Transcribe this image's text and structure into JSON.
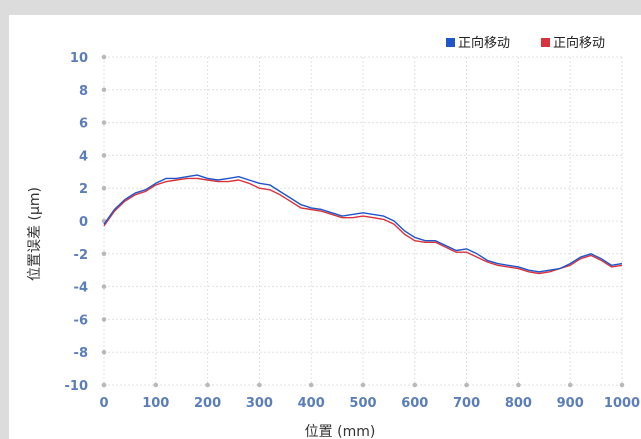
{
  "chart_data": {
    "type": "line",
    "title": "",
    "xlabel": "位置 (mm)",
    "ylabel": "位置误差 (μm)",
    "xlim": [
      0,
      1000
    ],
    "ylim": [
      -10,
      10
    ],
    "x_ticks": [
      "0",
      "100",
      "200",
      "300",
      "400",
      "500",
      "600",
      "700",
      "800",
      "900",
      "1000"
    ],
    "y_ticks": [
      "10",
      "8",
      "6",
      "4",
      "2",
      "0",
      "-2",
      "-4",
      "-6",
      "-8",
      "-10"
    ],
    "grid": true,
    "legend_position": "top-right",
    "series": [
      {
        "name": "正向移动",
        "color": "#2255c8",
        "x": [
          0,
          20,
          40,
          60,
          80,
          100,
          120,
          140,
          160,
          180,
          200,
          220,
          240,
          260,
          280,
          300,
          320,
          340,
          360,
          380,
          400,
          420,
          440,
          460,
          480,
          500,
          520,
          540,
          560,
          580,
          600,
          620,
          640,
          660,
          680,
          700,
          720,
          740,
          760,
          780,
          800,
          820,
          840,
          860,
          880,
          900,
          920,
          940,
          960,
          980,
          1000
        ],
        "y": [
          -0.2,
          0.7,
          1.3,
          1.7,
          1.9,
          2.3,
          2.6,
          2.6,
          2.7,
          2.8,
          2.6,
          2.5,
          2.6,
          2.7,
          2.5,
          2.3,
          2.2,
          1.8,
          1.4,
          1.0,
          0.8,
          0.7,
          0.5,
          0.3,
          0.4,
          0.5,
          0.4,
          0.3,
          0.0,
          -0.6,
          -1.0,
          -1.2,
          -1.2,
          -1.5,
          -1.8,
          -1.7,
          -2.0,
          -2.4,
          -2.6,
          -2.7,
          -2.8,
          -3.0,
          -3.1,
          -3.0,
          -2.9,
          -2.6,
          -2.2,
          -2.0,
          -2.3,
          -2.7,
          -2.6
        ]
      },
      {
        "name": "正向移动",
        "color": "#d8323c",
        "x": [
          0,
          20,
          40,
          60,
          80,
          100,
          120,
          140,
          160,
          180,
          200,
          220,
          240,
          260,
          280,
          300,
          320,
          340,
          360,
          380,
          400,
          420,
          440,
          460,
          480,
          500,
          520,
          540,
          560,
          580,
          600,
          620,
          640,
          660,
          680,
          700,
          720,
          740,
          760,
          780,
          800,
          820,
          840,
          860,
          880,
          900,
          920,
          940,
          960,
          980,
          1000
        ],
        "y": [
          -0.3,
          0.6,
          1.2,
          1.6,
          1.8,
          2.2,
          2.4,
          2.5,
          2.6,
          2.6,
          2.5,
          2.4,
          2.4,
          2.5,
          2.3,
          2.0,
          1.9,
          1.6,
          1.2,
          0.8,
          0.7,
          0.6,
          0.4,
          0.2,
          0.2,
          0.3,
          0.2,
          0.1,
          -0.2,
          -0.8,
          -1.2,
          -1.3,
          -1.3,
          -1.6,
          -1.9,
          -1.9,
          -2.2,
          -2.5,
          -2.7,
          -2.8,
          -2.9,
          -3.1,
          -3.2,
          -3.1,
          -2.9,
          -2.7,
          -2.3,
          -2.1,
          -2.4,
          -2.8,
          -2.7
        ]
      }
    ]
  }
}
